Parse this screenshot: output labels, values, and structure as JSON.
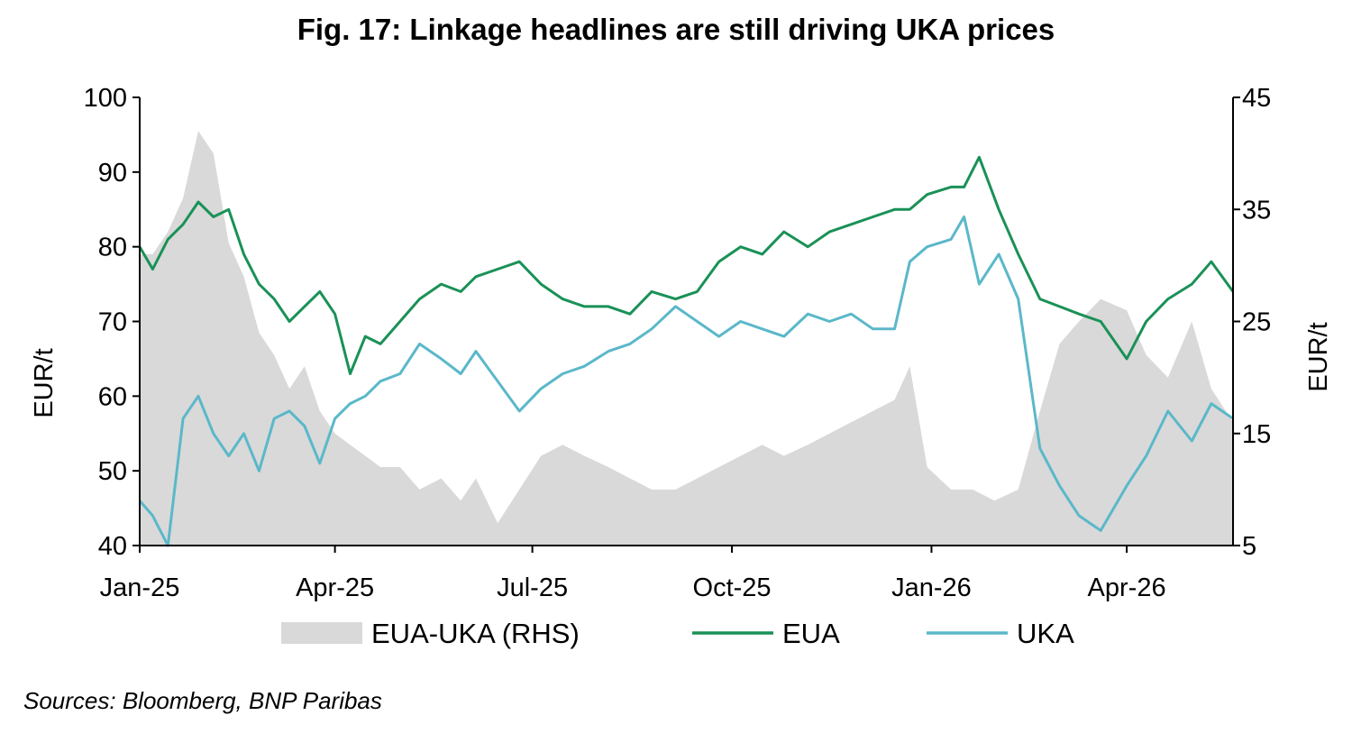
{
  "title": "Fig. 17: Linkage headlines are still driving UKA prices",
  "source": "Sources: Bloomberg,   BNP Paribas",
  "colors": {
    "spread": "#d9d9d9",
    "eua": "#1a9157",
    "uka": "#5ab8c9",
    "axis": "#000000"
  },
  "chart_data": {
    "type": "line",
    "title": "Fig. 17: Linkage headlines are still driving UKA prices",
    "xlabel": "",
    "ylabel": "EUR/t",
    "y2label": "EUR/t",
    "x_ticks": [
      "Jan-25",
      "Apr-25",
      "Jul-25",
      "Oct-25",
      "Jan-26",
      "Apr-26"
    ],
    "y_ticks": [
      "40",
      "50",
      "60",
      "70",
      "80",
      "90",
      "100"
    ],
    "y2_ticks": [
      "5",
      "15",
      "25",
      "35",
      "45"
    ],
    "ylim": [
      40,
      100
    ],
    "y2lim": [
      5,
      45
    ],
    "xlim": [
      "2025-01-01",
      "2026-05-20"
    ],
    "legend": "bottom",
    "grid": false,
    "series": [
      {
        "name": "EUA-UKA (RHS)",
        "axis": "right",
        "type": "area",
        "x": [
          "2025-01-01",
          "2025-01-07",
          "2025-01-14",
          "2025-01-21",
          "2025-01-28",
          "2025-02-04",
          "2025-02-11",
          "2025-02-18",
          "2025-02-25",
          "2025-03-04",
          "2025-03-11",
          "2025-03-18",
          "2025-03-25",
          "2025-04-01",
          "2025-04-08",
          "2025-04-15",
          "2025-04-22",
          "2025-05-01",
          "2025-05-10",
          "2025-05-20",
          "2025-05-29",
          "2025-06-05",
          "2025-06-15",
          "2025-06-25",
          "2025-07-05",
          "2025-07-15",
          "2025-07-25",
          "2025-08-05",
          "2025-08-15",
          "2025-08-25",
          "2025-09-05",
          "2025-09-15",
          "2025-09-25",
          "2025-10-05",
          "2025-10-15",
          "2025-10-25",
          "2025-11-05",
          "2025-11-15",
          "2025-11-25",
          "2025-12-05",
          "2025-12-15",
          "2025-12-22",
          "2025-12-30",
          "2026-01-10",
          "2026-01-20",
          "2026-01-30",
          "2026-02-10",
          "2026-02-20",
          "2026-03-01",
          "2026-03-10",
          "2026-03-20",
          "2026-04-01",
          "2026-04-10",
          "2026-04-20",
          "2026-05-01",
          "2026-05-10",
          "2026-05-20"
        ],
        "values": [
          31,
          31,
          33,
          36,
          42,
          40,
          32,
          29,
          24,
          22,
          19,
          21,
          17,
          15,
          14,
          13,
          12,
          12,
          10,
          11,
          9,
          11,
          7,
          10,
          13,
          14,
          13,
          12,
          11,
          10,
          10,
          11,
          12,
          13,
          14,
          13,
          14,
          15,
          16,
          17,
          18,
          21,
          12,
          10,
          10,
          9,
          10,
          17,
          23,
          25,
          27,
          26,
          22,
          20,
          25,
          19,
          16
        ]
      },
      {
        "name": "EUA",
        "axis": "left",
        "x": [
          "2025-01-01",
          "2025-01-07",
          "2025-01-14",
          "2025-01-21",
          "2025-01-28",
          "2025-02-04",
          "2025-02-11",
          "2025-02-18",
          "2025-02-25",
          "2025-03-04",
          "2025-03-11",
          "2025-03-18",
          "2025-03-25",
          "2025-04-01",
          "2025-04-08",
          "2025-04-15",
          "2025-04-22",
          "2025-05-01",
          "2025-05-10",
          "2025-05-20",
          "2025-05-29",
          "2025-06-05",
          "2025-06-15",
          "2025-06-25",
          "2025-07-05",
          "2025-07-15",
          "2025-07-25",
          "2025-08-05",
          "2025-08-15",
          "2025-08-25",
          "2025-09-05",
          "2025-09-15",
          "2025-09-25",
          "2025-10-05",
          "2025-10-15",
          "2025-10-25",
          "2025-11-05",
          "2025-11-15",
          "2025-11-25",
          "2025-12-05",
          "2025-12-15",
          "2025-12-22",
          "2025-12-30",
          "2026-01-10",
          "2026-01-16",
          "2026-01-23",
          "2026-02-01",
          "2026-02-10",
          "2026-02-20",
          "2026-03-01",
          "2026-03-10",
          "2026-03-20",
          "2026-04-01",
          "2026-04-10",
          "2026-04-20",
          "2026-05-01",
          "2026-05-10",
          "2026-05-20"
        ],
        "values": [
          80,
          77,
          81,
          83,
          86,
          84,
          85,
          79,
          75,
          73,
          70,
          72,
          74,
          71,
          63,
          68,
          67,
          70,
          73,
          75,
          74,
          76,
          77,
          78,
          75,
          73,
          72,
          72,
          71,
          74,
          73,
          74,
          78,
          80,
          79,
          82,
          80,
          82,
          83,
          84,
          85,
          85,
          87,
          88,
          88,
          92,
          85,
          79,
          73,
          72,
          71,
          70,
          65,
          70,
          73,
          75,
          78,
          74
        ]
      },
      {
        "name": "UKA",
        "axis": "left",
        "x": [
          "2025-01-01",
          "2025-01-07",
          "2025-01-14",
          "2025-01-21",
          "2025-01-28",
          "2025-02-04",
          "2025-02-11",
          "2025-02-18",
          "2025-02-25",
          "2025-03-04",
          "2025-03-11",
          "2025-03-18",
          "2025-03-25",
          "2025-04-01",
          "2025-04-08",
          "2025-04-15",
          "2025-04-22",
          "2025-05-01",
          "2025-05-10",
          "2025-05-20",
          "2025-05-29",
          "2025-06-05",
          "2025-06-15",
          "2025-06-25",
          "2025-07-05",
          "2025-07-15",
          "2025-07-25",
          "2025-08-05",
          "2025-08-15",
          "2025-08-25",
          "2025-09-05",
          "2025-09-15",
          "2025-09-25",
          "2025-10-05",
          "2025-10-15",
          "2025-10-25",
          "2025-11-05",
          "2025-11-15",
          "2025-11-25",
          "2025-12-05",
          "2025-12-15",
          "2025-12-22",
          "2025-12-30",
          "2026-01-10",
          "2026-01-16",
          "2026-01-23",
          "2026-02-01",
          "2026-02-10",
          "2026-02-20",
          "2026-03-01",
          "2026-03-10",
          "2026-03-20",
          "2026-04-01",
          "2026-04-10",
          "2026-04-20",
          "2026-05-01",
          "2026-05-10",
          "2026-05-20"
        ],
        "values": [
          46,
          44,
          40,
          57,
          60,
          55,
          52,
          55,
          50,
          57,
          58,
          56,
          51,
          57,
          59,
          60,
          62,
          63,
          67,
          65,
          63,
          66,
          62,
          58,
          61,
          63,
          64,
          66,
          67,
          69,
          72,
          70,
          68,
          70,
          69,
          68,
          71,
          70,
          71,
          69,
          69,
          78,
          80,
          81,
          84,
          75,
          79,
          73,
          53,
          48,
          44,
          42,
          48,
          52,
          58,
          54,
          59,
          57
        ]
      }
    ]
  }
}
